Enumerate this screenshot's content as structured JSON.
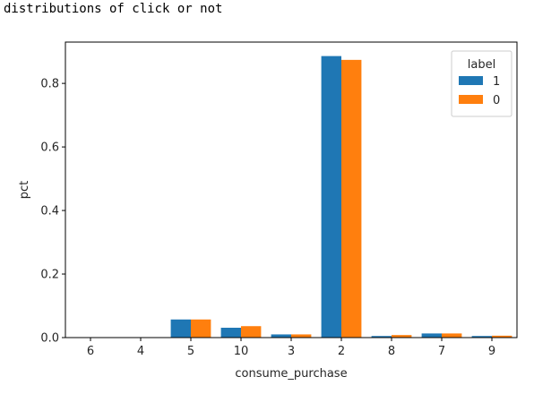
{
  "caption": "distributions of click or not",
  "chart_data": {
    "type": "bar",
    "xlabel": "consume_purchase",
    "ylabel": "pct",
    "categories": [
      "6",
      "4",
      "5",
      "10",
      "3",
      "2",
      "8",
      "7",
      "9"
    ],
    "ylim": [
      0,
      0.93
    ],
    "yticks": [
      "0.0",
      "0.2",
      "0.4",
      "0.6",
      "0.8"
    ],
    "grid": false,
    "legend": {
      "title": "label",
      "placement": "top-right"
    },
    "series": [
      {
        "name": "1",
        "color": "#1f77b4",
        "values": [
          0.0,
          0.0,
          0.057,
          0.031,
          0.01,
          0.886,
          0.005,
          0.013,
          0.005
        ]
      },
      {
        "name": "0",
        "color": "#ff7f0e",
        "values": [
          0.001,
          0.001,
          0.057,
          0.036,
          0.01,
          0.874,
          0.008,
          0.013,
          0.006
        ]
      }
    ]
  }
}
